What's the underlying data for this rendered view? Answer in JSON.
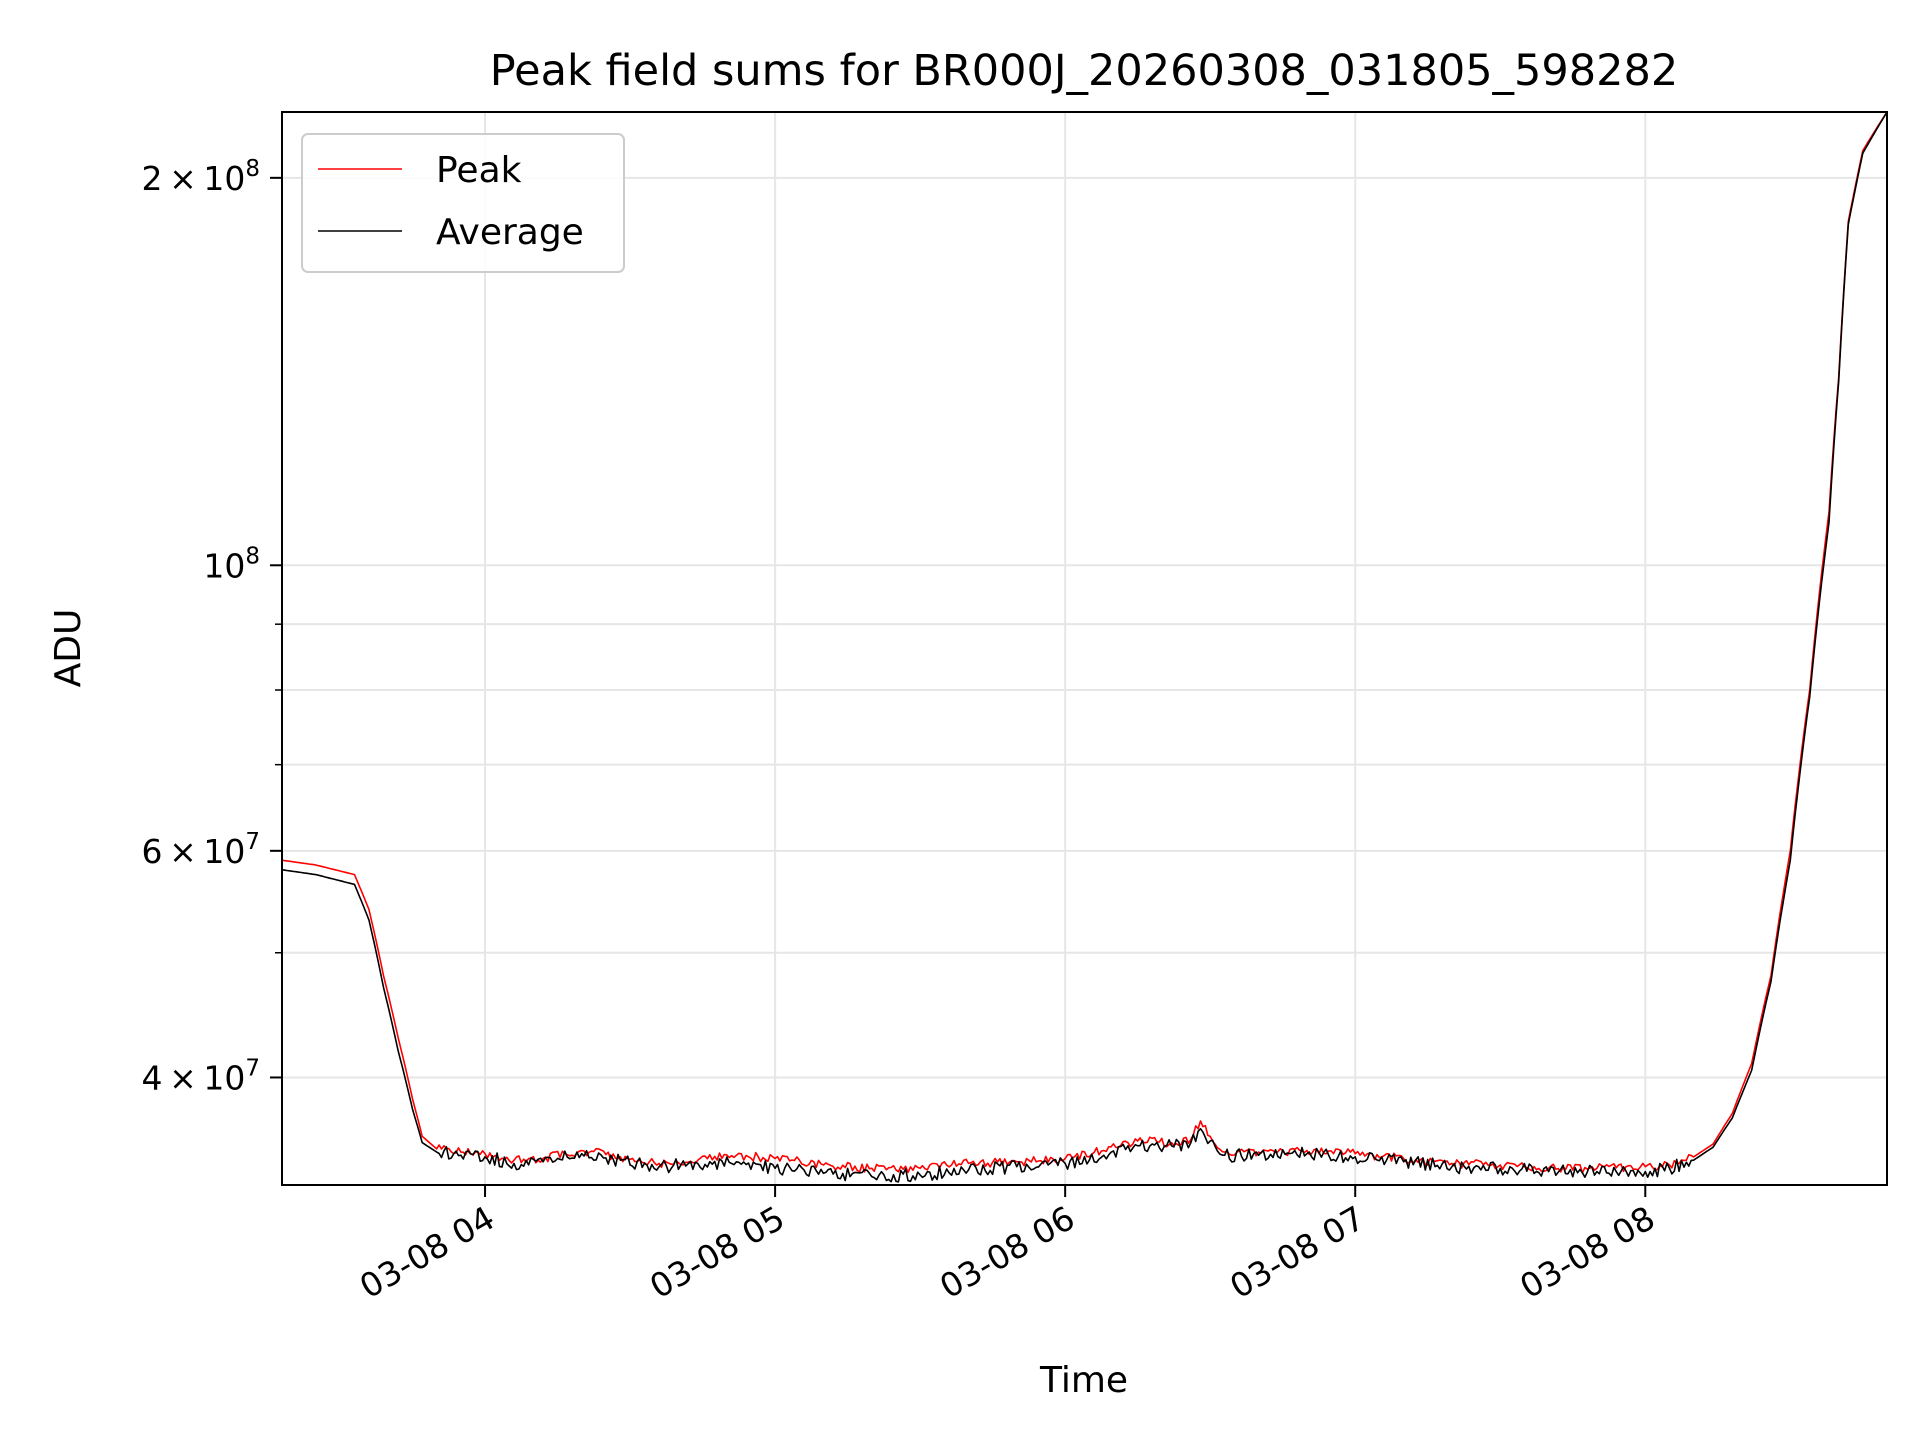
{
  "chart_data": {
    "type": "line",
    "title": "Peak field sums for BR000J_20260308_031805_598282",
    "xlabel": "Time",
    "ylabel": "ADU",
    "xlim": [
      "2026-03-08 03:18",
      "2026-03-08 08:50"
    ],
    "ylim": [
      33000000,
      225000000
    ],
    "yscale": "log",
    "grid": true,
    "legend_position": "upper-left",
    "x_ticks": [
      {
        "value": "2026-03-08 04:00",
        "label": "03-08 04"
      },
      {
        "value": "2026-03-08 05:00",
        "label": "03-08 05"
      },
      {
        "value": "2026-03-08 06:00",
        "label": "03-08 06"
      },
      {
        "value": "2026-03-08 07:00",
        "label": "03-08 07"
      },
      {
        "value": "2026-03-08 08:00",
        "label": "03-08 08"
      }
    ],
    "y_ticks": [
      {
        "value": 40000000,
        "mantissa": "4",
        "exponent": "7"
      },
      {
        "value": 60000000,
        "mantissa": "6",
        "exponent": "7"
      },
      {
        "value": 100000000,
        "mantissa": "",
        "exponent": "8"
      },
      {
        "value": 200000000,
        "mantissa": "2",
        "exponent": "8"
      }
    ],
    "y_minor_ticks": [
      50000000,
      70000000,
      80000000,
      90000000
    ],
    "series": [
      {
        "name": "Peak",
        "color": "#ff0000",
        "x": [
          "2026-03-08 03:18",
          "2026-03-08 03:25",
          "2026-03-08 03:33",
          "2026-03-08 03:36",
          "2026-03-08 03:39",
          "2026-03-08 03:42",
          "2026-03-08 03:45",
          "2026-03-08 03:47",
          "2026-03-08 03:50",
          "2026-03-08 03:55",
          "2026-03-08 04:00",
          "2026-03-08 04:06",
          "2026-03-08 04:12",
          "2026-03-08 04:20",
          "2026-03-08 04:28",
          "2026-03-08 04:36",
          "2026-03-08 04:44",
          "2026-03-08 04:52",
          "2026-03-08 05:00",
          "2026-03-08 05:10",
          "2026-03-08 05:20",
          "2026-03-08 05:30",
          "2026-03-08 05:40",
          "2026-03-08 05:50",
          "2026-03-08 06:00",
          "2026-03-08 06:08",
          "2026-03-08 06:15",
          "2026-03-08 06:22",
          "2026-03-08 06:26",
          "2026-03-08 06:28",
          "2026-03-08 06:30",
          "2026-03-08 06:33",
          "2026-03-08 06:40",
          "2026-03-08 06:50",
          "2026-03-08 07:00",
          "2026-03-08 07:10",
          "2026-03-08 07:20",
          "2026-03-08 07:30",
          "2026-03-08 07:40",
          "2026-03-08 07:50",
          "2026-03-08 08:00",
          "2026-03-08 08:05",
          "2026-03-08 08:10",
          "2026-03-08 08:14",
          "2026-03-08 08:18",
          "2026-03-08 08:22",
          "2026-03-08 08:26",
          "2026-03-08 08:30",
          "2026-03-08 08:34",
          "2026-03-08 08:38",
          "2026-03-08 08:40",
          "2026-03-08 08:42",
          "2026-03-08 08:45",
          "2026-03-08 08:50"
        ],
        "y": [
          59000000,
          58500000,
          57500000,
          54000000,
          48000000,
          43000000,
          38500000,
          36000000,
          35200000,
          35000000,
          34900000,
          34500000,
          34600000,
          35100000,
          34700000,
          34300000,
          34500000,
          34800000,
          34600000,
          34200000,
          34000000,
          34000000,
          34300000,
          34400000,
          34600000,
          35100000,
          35700000,
          35600000,
          35800000,
          37000000,
          36000000,
          35000000,
          35000000,
          35100000,
          34900000,
          34600000,
          34300000,
          34200000,
          34000000,
          34000000,
          34100000,
          34200000,
          34700000,
          35500000,
          37500000,
          41000000,
          48000000,
          60000000,
          80000000,
          110000000,
          140000000,
          185000000,
          210000000,
          225000000
        ]
      },
      {
        "name": "Average",
        "color": "#000000",
        "x": [
          "2026-03-08 03:18",
          "2026-03-08 03:25",
          "2026-03-08 03:33",
          "2026-03-08 03:36",
          "2026-03-08 03:39",
          "2026-03-08 03:42",
          "2026-03-08 03:45",
          "2026-03-08 03:47",
          "2026-03-08 03:50",
          "2026-03-08 03:55",
          "2026-03-08 04:00",
          "2026-03-08 04:06",
          "2026-03-08 04:12",
          "2026-03-08 04:20",
          "2026-03-08 04:28",
          "2026-03-08 04:36",
          "2026-03-08 04:44",
          "2026-03-08 04:52",
          "2026-03-08 05:00",
          "2026-03-08 05:10",
          "2026-03-08 05:20",
          "2026-03-08 05:30",
          "2026-03-08 05:40",
          "2026-03-08 05:50",
          "2026-03-08 06:00",
          "2026-03-08 06:08",
          "2026-03-08 06:15",
          "2026-03-08 06:22",
          "2026-03-08 06:26",
          "2026-03-08 06:28",
          "2026-03-08 06:30",
          "2026-03-08 06:33",
          "2026-03-08 06:40",
          "2026-03-08 06:50",
          "2026-03-08 07:00",
          "2026-03-08 07:10",
          "2026-03-08 07:20",
          "2026-03-08 07:30",
          "2026-03-08 07:40",
          "2026-03-08 07:50",
          "2026-03-08 08:00",
          "2026-03-08 08:05",
          "2026-03-08 08:10",
          "2026-03-08 08:14",
          "2026-03-08 08:18",
          "2026-03-08 08:22",
          "2026-03-08 08:26",
          "2026-03-08 08:30",
          "2026-03-08 08:34",
          "2026-03-08 08:38",
          "2026-03-08 08:40",
          "2026-03-08 08:42",
          "2026-03-08 08:45",
          "2026-03-08 08:50"
        ],
        "y": [
          58000000,
          57500000,
          56500000,
          53000000,
          47000000,
          42000000,
          37800000,
          35600000,
          35000000,
          34800000,
          34700000,
          34300000,
          34400000,
          34900000,
          34500000,
          34100000,
          34300000,
          34400000,
          34000000,
          33700000,
          33500000,
          33600000,
          33900000,
          34100000,
          34300000,
          34800000,
          35400000,
          35400000,
          35600000,
          36500000,
          35700000,
          34800000,
          34800000,
          34900000,
          34700000,
          34400000,
          34100000,
          34000000,
          33800000,
          33800000,
          33800000,
          34000000,
          34500000,
          35300000,
          37200000,
          40500000,
          47500000,
          59000000,
          79000000,
          108000000,
          139000000,
          184000000,
          209000000,
          225000000
        ]
      }
    ]
  }
}
